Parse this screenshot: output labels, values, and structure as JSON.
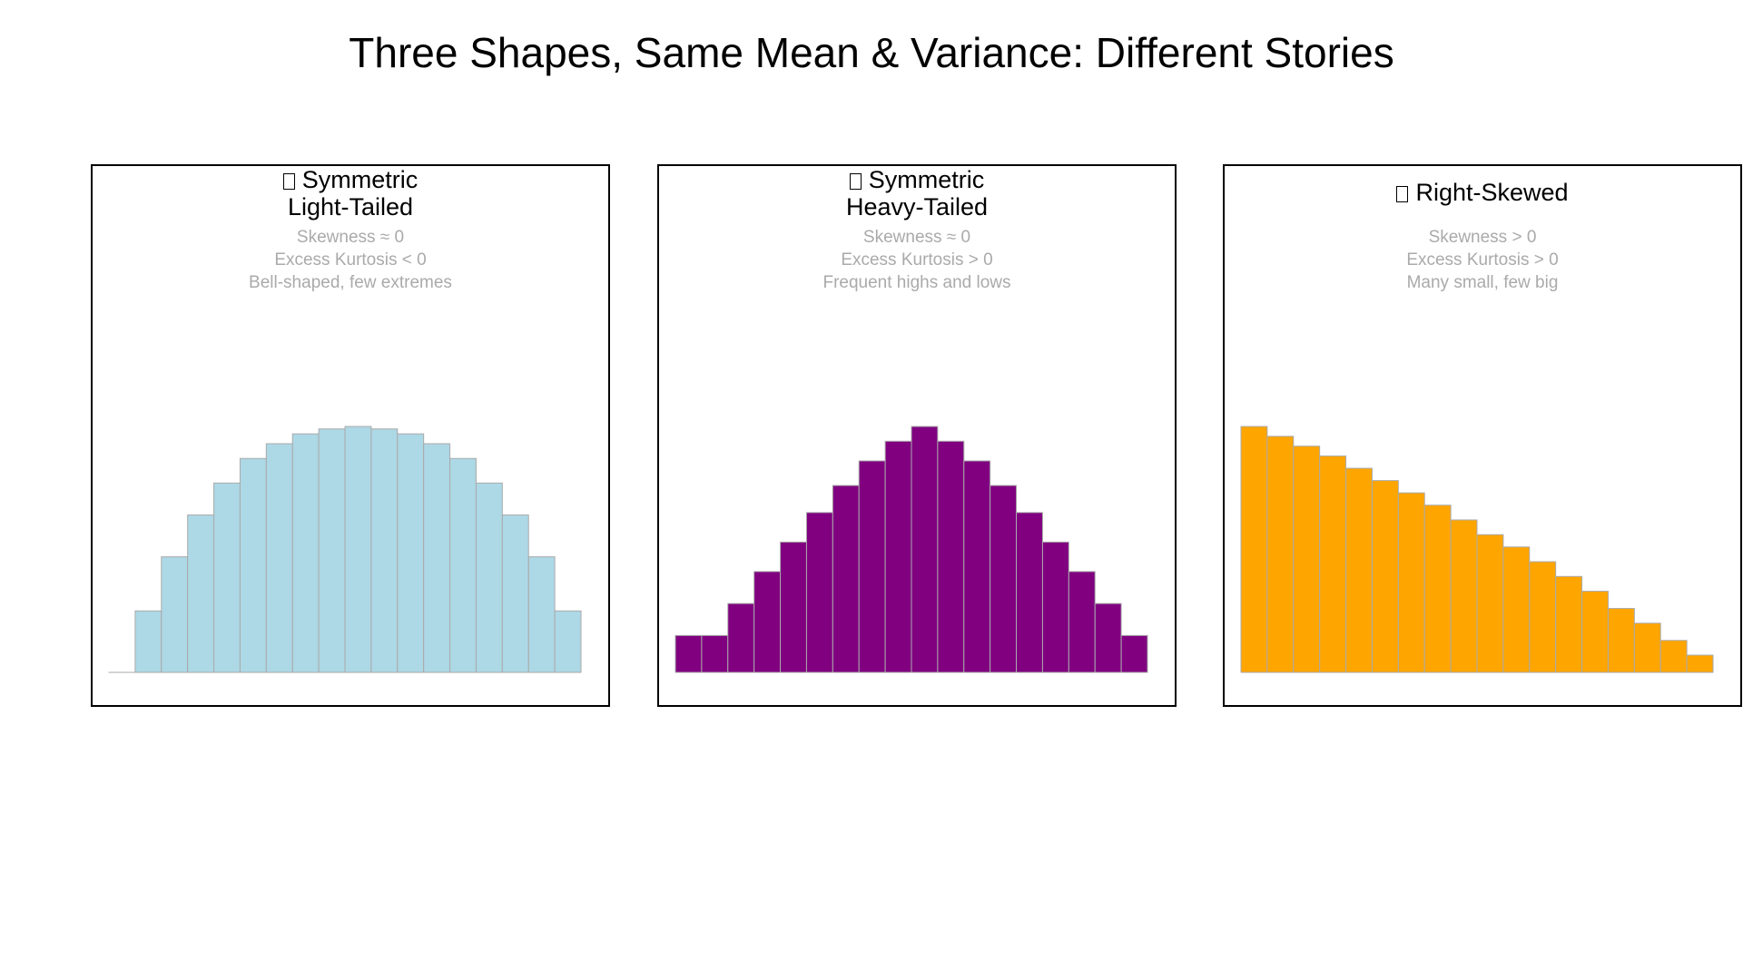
{
  "title": "Three Shapes, Same Mean & Variance: Different Stories",
  "chart_data": [
    {
      "type": "bar",
      "title_lines": [
        "Symmetric",
        "Light-Tailed"
      ],
      "title_icon": "missing-glyph-box",
      "annotations": [
        "Skewness ≈ 0",
        "Excess Kurtosis < 0",
        "Bell-shaped, few extremes"
      ],
      "values": [
        0,
        25,
        47,
        64,
        77,
        87,
        93,
        97,
        99,
        100,
        99,
        97,
        93,
        87,
        77,
        64,
        47,
        25
      ],
      "value_scale": "relative (percent of tallest bar)",
      "color": "#add8e6",
      "edge_color": "#aaaaaa",
      "axes_visible": false,
      "grid": false
    },
    {
      "type": "bar",
      "title_lines": [
        "Symmetric",
        "Heavy-Tailed"
      ],
      "title_icon": "missing-glyph-box",
      "annotations": [
        "Skewness ≈ 0",
        "Excess Kurtosis > 0",
        "Frequent highs and lows"
      ],
      "values": [
        15,
        15,
        28,
        41,
        53,
        65,
        76,
        86,
        94,
        100,
        94,
        86,
        76,
        65,
        53,
        41,
        28,
        15
      ],
      "value_scale": "relative (percent of tallest bar)",
      "color": "#800080",
      "edge_color": "#aaaaaa",
      "axes_visible": false,
      "grid": false
    },
    {
      "type": "bar",
      "title_lines": [
        "Right-Skewed"
      ],
      "title_icon": "missing-glyph-box",
      "annotations": [
        "Skewness > 0",
        "Excess Kurtosis > 0",
        "Many small, few big"
      ],
      "values": [
        100,
        96,
        92,
        88,
        83,
        78,
        73,
        68,
        62,
        56,
        51,
        45,
        39,
        33,
        26,
        20,
        13,
        7
      ],
      "value_scale": "relative (percent of tallest bar)",
      "color": "#ffa500",
      "edge_color": "#aaaaaa",
      "axes_visible": false,
      "grid": false
    }
  ]
}
